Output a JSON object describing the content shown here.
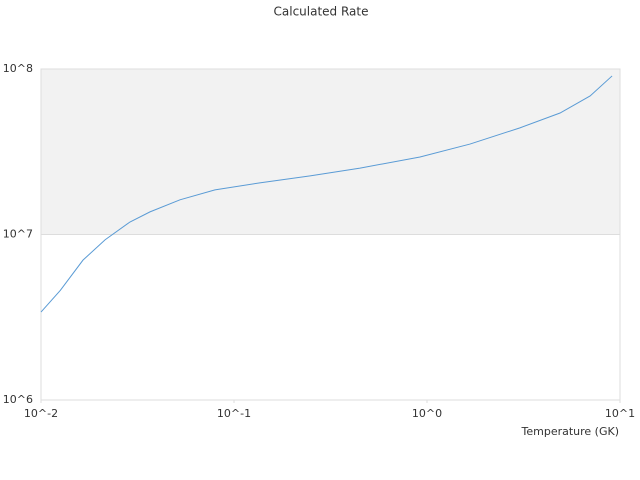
{
  "chart_data": {
    "type": "line",
    "title": "Calculated Rate",
    "x_label": "Temperature (GK)",
    "x_log": true,
    "y_log": true,
    "bands": true,
    "xlim": [
      0.01,
      10
    ],
    "ylim": [
      1000000,
      100000000
    ],
    "xticks": [
      {
        "value": 0.01,
        "label": "10^-2"
      },
      {
        "value": 0.1,
        "label": "10^-1"
      },
      {
        "value": 1,
        "label": "10^0"
      },
      {
        "value": 10,
        "label": "10^1"
      }
    ],
    "yticks": [
      {
        "value": 1000000,
        "label": "10^6"
      },
      {
        "value": 10000000,
        "label": "10^7"
      },
      {
        "value": 100000000,
        "label": "10^8"
      }
    ],
    "x": [
      0.01,
      0.0126,
      0.0165,
      0.0215,
      0.0289,
      0.0367,
      0.0525,
      0.0797,
      0.136,
      0.248,
      0.45,
      0.92,
      1.67,
      3.03,
      4.89,
      7.0,
      9.1
    ],
    "series": [
      {
        "name": "Rate",
        "color": "#5a9bd5",
        "values": [
          3400000,
          4600000,
          7000000,
          9300000,
          11900000,
          13700000,
          16200000,
          18600000,
          20500000,
          22600000,
          25200000,
          29400000,
          35200000,
          44100000,
          54200000,
          68700000,
          90800000
        ]
      }
    ]
  }
}
